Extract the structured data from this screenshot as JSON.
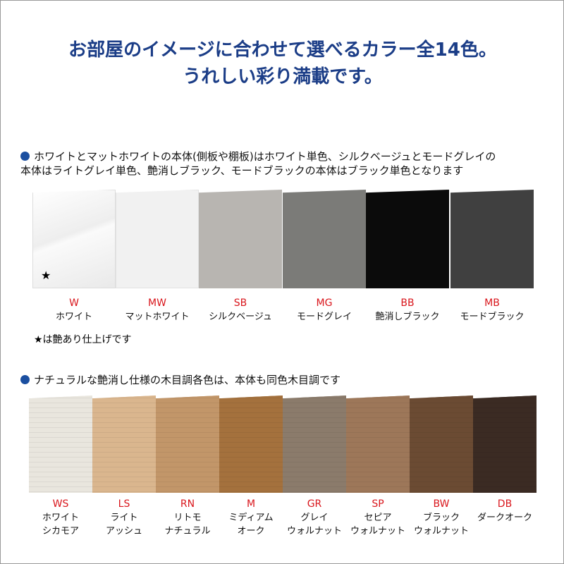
{
  "title_line1": "お部屋のイメージに合わせて選べるカラー全14色。",
  "title_line2": "うれしい彩り満載です。",
  "section1": {
    "note_line1": "ホワイトとマットホワイトの本体(側板や棚板)はホワイト単色、シルクベージュとモードグレイの",
    "note_line2": "本体はライトグレイ単色、艶消しブラック、モードブラックの本体はブラック単色となります",
    "swatches": [
      {
        "code": "W",
        "name": "ホワイト",
        "color": "#f6f6f6"
      },
      {
        "code": "MW",
        "name": "マットホワイト",
        "color": "#f1f1f1"
      },
      {
        "code": "SB",
        "name": "シルクベージュ",
        "color": "#b8b5b1"
      },
      {
        "code": "MG",
        "name": "モードグレイ",
        "color": "#7b7b78"
      },
      {
        "code": "BB",
        "name": "艶消しブラック",
        "color": "#0b0b0b"
      },
      {
        "code": "MB",
        "name": "モードブラック",
        "color": "#404040"
      }
    ],
    "star": "★",
    "star_note": "★は艶あり仕上げです"
  },
  "section2": {
    "note": "ナチュラルな艶消し仕様の木目調各色は、本体も同色木目調です",
    "swatches": [
      {
        "code": "WS",
        "name1": "ホワイト",
        "name2": "シカモア",
        "color": "#e9e6de"
      },
      {
        "code": "LS",
        "name1": "ライト",
        "name2": "アッシュ",
        "color": "#dab68e"
      },
      {
        "code": "RN",
        "name1": "リトモ",
        "name2": "ナチュラル",
        "color": "#c29669"
      },
      {
        "code": "M",
        "name1": "ミディアム",
        "name2": "オーク",
        "color": "#a4713d"
      },
      {
        "code": "GR",
        "name1": "グレイ",
        "name2": "ウォルナット",
        "color": "#8b7b6b"
      },
      {
        "code": "SP",
        "name1": "セピア",
        "name2": "ウォルナット",
        "color": "#9d7759"
      },
      {
        "code": "BW",
        "name1": "ブラック",
        "name2": "ウォルナット",
        "color": "#6b4b33"
      },
      {
        "code": "DB",
        "name1": "ダークオーク",
        "name2": "",
        "color": "#3b2b23"
      }
    ]
  }
}
